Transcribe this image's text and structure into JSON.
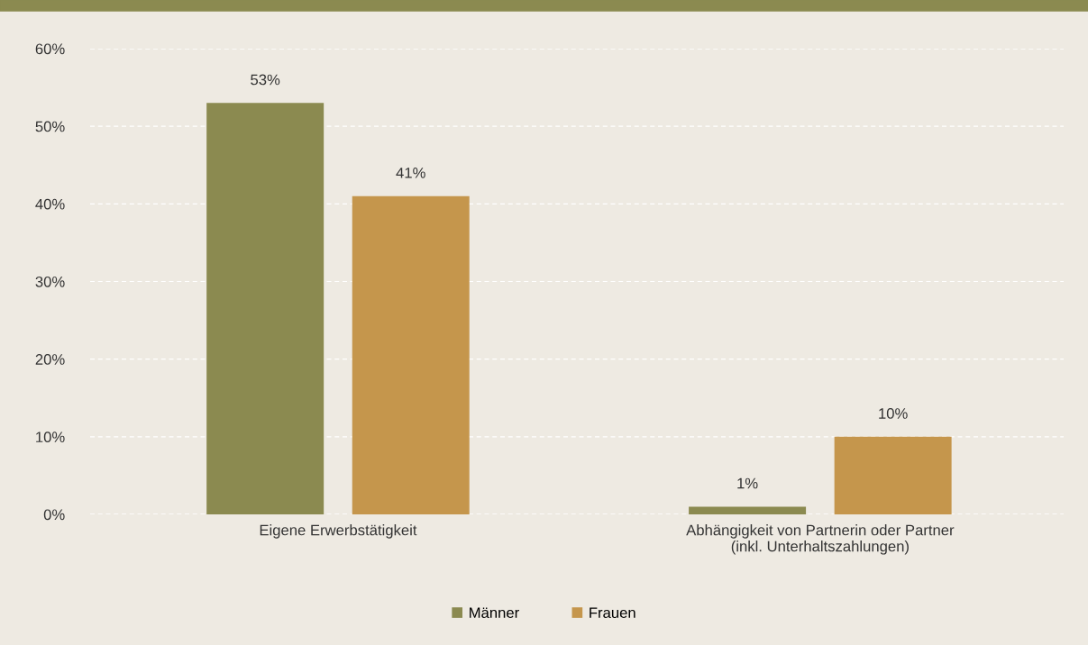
{
  "chart_data": {
    "type": "bar",
    "categories": [
      "Eigene Erwerbstätigkeit",
      "Abhängigkeit von Partnerin oder Partner\n(inkl. Unterhaltszahlungen)"
    ],
    "series": [
      {
        "name": "Männer",
        "color": "#8b8a50",
        "values": [
          53,
          1
        ],
        "value_labels": [
          "53%",
          "1%"
        ]
      },
      {
        "name": "Frauen",
        "color": "#c5964c",
        "values": [
          41,
          10
        ],
        "value_labels": [
          "41%",
          "10%"
        ]
      }
    ],
    "ylim": [
      0,
      60
    ],
    "yticks": [
      {
        "value": 0,
        "label": "0%"
      },
      {
        "value": 10,
        "label": "10%"
      },
      {
        "value": 20,
        "label": "20%"
      },
      {
        "value": 30,
        "label": "30%"
      },
      {
        "value": 40,
        "label": "40%"
      },
      {
        "value": 50,
        "label": "50%"
      },
      {
        "value": 60,
        "label": "60%"
      }
    ],
    "grid": "y",
    "legend": "bottom"
  }
}
